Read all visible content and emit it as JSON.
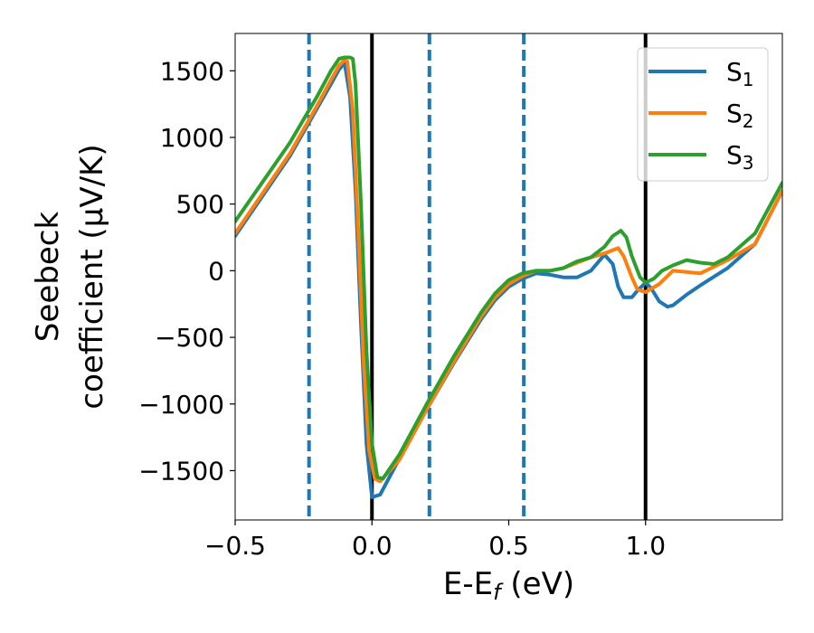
{
  "chart_data": {
    "type": "line",
    "title": "",
    "xlabel": "E-Eƒ (eV)",
    "xlabel_main": "E-E",
    "xlabel_sub": "f",
    "xlabel_unit": " (eV)",
    "ylabel_line1": "Seebeck",
    "ylabel_line2": "coefficient  (μV/K)",
    "xlim": [
      -0.5,
      1.5
    ],
    "ylim": [
      -1870,
      1780
    ],
    "xticks": [
      -0.5,
      0.0,
      0.5,
      1.0
    ],
    "xtick_labels": [
      "−0.5",
      "0.0",
      "0.5",
      "1.0"
    ],
    "yticks": [
      -1500,
      -1000,
      -500,
      0,
      500,
      1000,
      1500
    ],
    "ytick_labels": [
      "−1500",
      "−1000",
      "−500",
      "0",
      "500",
      "1000",
      "1500"
    ],
    "grid": false,
    "legend_position": "top-right",
    "vlines_solid": [
      0.0,
      1.0
    ],
    "vlines_dashed": [
      -0.23,
      0.21,
      0.555
    ],
    "solid_line_color": "#000000",
    "dashed_line_color": "#1f77b4",
    "series": [
      {
        "name": "S1",
        "label_main": "S",
        "label_sub": "1",
        "color": "#1f77b4",
        "x": [
          -0.5,
          -0.3,
          -0.2,
          -0.15,
          -0.12,
          -0.1,
          -0.08,
          -0.06,
          -0.04,
          -0.02,
          0.0,
          0.03,
          0.1,
          0.2,
          0.3,
          0.4,
          0.45,
          0.5,
          0.55,
          0.6,
          0.65,
          0.7,
          0.75,
          0.8,
          0.85,
          0.88,
          0.9,
          0.92,
          0.95,
          0.97,
          1.0,
          1.02,
          1.05,
          1.08,
          1.1,
          1.15,
          1.2,
          1.3,
          1.4,
          1.5
        ],
        "y": [
          260,
          860,
          1220,
          1400,
          1510,
          1560,
          1300,
          600,
          -400,
          -1300,
          -1700,
          -1680,
          -1410,
          -1040,
          -690,
          -360,
          -220,
          -120,
          -60,
          -20,
          -30,
          -50,
          -50,
          0,
          120,
          50,
          -120,
          -200,
          -200,
          -150,
          -90,
          -130,
          -230,
          -270,
          -260,
          -180,
          -110,
          20,
          200,
          600
        ]
      },
      {
        "name": "S2",
        "label_main": "S",
        "label_sub": "2",
        "color": "#ff7f0e",
        "x": [
          -0.5,
          -0.3,
          -0.2,
          -0.15,
          -0.12,
          -0.1,
          -0.09,
          -0.07,
          -0.05,
          -0.03,
          -0.01,
          0.01,
          0.03,
          0.1,
          0.2,
          0.3,
          0.4,
          0.45,
          0.5,
          0.55,
          0.6,
          0.65,
          0.7,
          0.75,
          0.8,
          0.85,
          0.9,
          0.92,
          0.95,
          0.97,
          1.0,
          1.05,
          1.1,
          1.15,
          1.2,
          1.25,
          1.3,
          1.4,
          1.5
        ],
        "y": [
          280,
          880,
          1240,
          1430,
          1540,
          1580,
          1570,
          1200,
          300,
          -700,
          -1350,
          -1560,
          -1580,
          -1420,
          -1040,
          -680,
          -340,
          -200,
          -100,
          -40,
          0,
          0,
          20,
          60,
          100,
          130,
          170,
          110,
          -50,
          -140,
          -160,
          -100,
          0,
          -10,
          -20,
          30,
          80,
          200,
          600
        ]
      },
      {
        "name": "S3",
        "label_main": "S",
        "label_sub": "3",
        "color": "#2ca02c",
        "x": [
          -0.5,
          -0.3,
          -0.2,
          -0.15,
          -0.12,
          -0.1,
          -0.08,
          -0.07,
          -0.06,
          -0.04,
          -0.02,
          0.0,
          0.02,
          0.04,
          0.1,
          0.2,
          0.3,
          0.4,
          0.45,
          0.5,
          0.55,
          0.6,
          0.65,
          0.7,
          0.75,
          0.8,
          0.85,
          0.88,
          0.91,
          0.93,
          0.95,
          0.98,
          1.0,
          1.03,
          1.06,
          1.1,
          1.15,
          1.2,
          1.25,
          1.3,
          1.4,
          1.5
        ],
        "y": [
          370,
          960,
          1310,
          1500,
          1590,
          1600,
          1600,
          1590,
          1400,
          500,
          -600,
          -1300,
          -1550,
          -1560,
          -1380,
          -1000,
          -640,
          -310,
          -170,
          -70,
          -20,
          0,
          0,
          20,
          70,
          100,
          180,
          260,
          300,
          250,
          110,
          -50,
          -90,
          -60,
          0,
          40,
          80,
          60,
          50,
          100,
          280,
          660
        ]
      }
    ]
  }
}
